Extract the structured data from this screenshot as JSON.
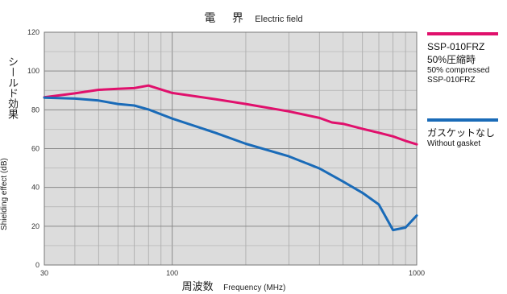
{
  "title": {
    "jp": "電 界",
    "en": "Electric field"
  },
  "chart_data": {
    "type": "line",
    "title": "電 界 Electric field",
    "xlabel": {
      "jp": "周波数",
      "en": "Frequency (MHz)"
    },
    "ylabel": {
      "jp": "シールド効果",
      "en": "Shielding effect (dB)"
    },
    "x_scale": "log",
    "xlim": [
      30,
      1000
    ],
    "ylim": [
      0,
      120
    ],
    "x_ticks": [
      30,
      100,
      1000
    ],
    "y_ticks": [
      0,
      20,
      40,
      60,
      80,
      100,
      120
    ],
    "grid": true,
    "legend_position": "right",
    "series": [
      {
        "name_lines": [
          "SSP-010FRZ",
          "50%圧縮時",
          "50% compressed",
          "SSP-010FRZ"
        ],
        "color": "#e0106c",
        "x": [
          30,
          40,
          50,
          60,
          70,
          80,
          100,
          150,
          200,
          300,
          400,
          450,
          500,
          600,
          700,
          800,
          900,
          1000
        ],
        "y": [
          86.5,
          88.5,
          90.3,
          90.8,
          91.2,
          92.5,
          88.7,
          85.5,
          83,
          79.2,
          75.8,
          73.5,
          72.8,
          70.2,
          68.2,
          66.3,
          64,
          62.2
        ]
      },
      {
        "name_lines": [
          "ガスケットなし",
          "Without gasket"
        ],
        "color": "#1a6bb8",
        "x": [
          30,
          40,
          50,
          60,
          70,
          80,
          100,
          150,
          200,
          300,
          400,
          500,
          600,
          700,
          800,
          900,
          1000
        ],
        "y": [
          86.3,
          85.8,
          84.8,
          83,
          82.2,
          80.2,
          75.5,
          68.2,
          62.5,
          56,
          49.8,
          43,
          37.2,
          31.2,
          18,
          19.3,
          25.5
        ]
      }
    ]
  }
}
